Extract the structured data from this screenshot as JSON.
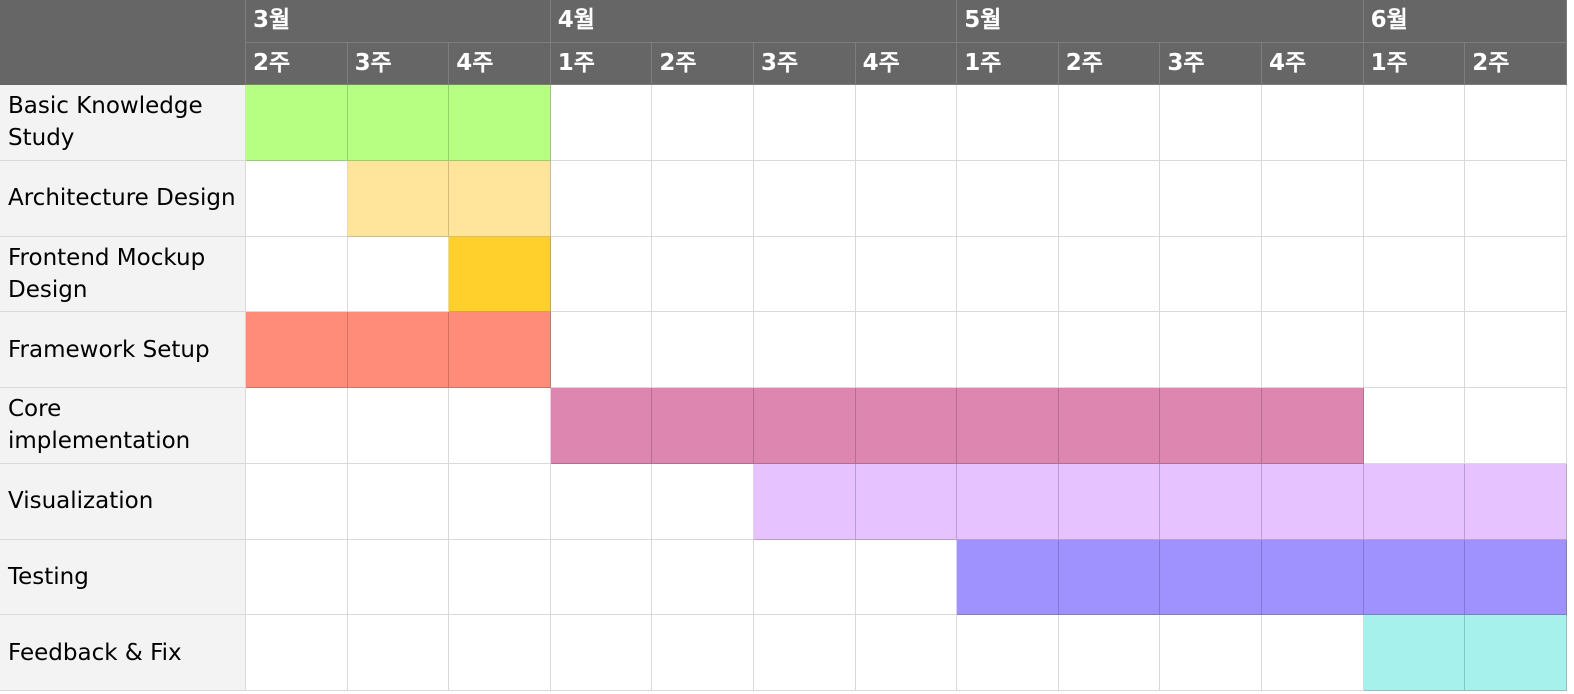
{
  "months": [
    {
      "label": "3월",
      "start": 0,
      "span": 3
    },
    {
      "label": "4월",
      "start": 3,
      "span": 4
    },
    {
      "label": "5월",
      "start": 7,
      "span": 4
    },
    {
      "label": "6월",
      "start": 11,
      "span": 2
    }
  ],
  "weeks": [
    "2주",
    "3주",
    "4주",
    "1주",
    "2주",
    "3주",
    "4주",
    "1주",
    "2주",
    "3주",
    "4주",
    "1주",
    "2주"
  ],
  "tasks": [
    {
      "label": "Basic Knowledge Study",
      "start": 0,
      "end": 2,
      "color": "#b6ff82"
    },
    {
      "label": "Architecture Design",
      "start": 1,
      "end": 2,
      "color": "#ffe59b"
    },
    {
      "label": "Frontend Mockup Design",
      "start": 2,
      "end": 2,
      "color": "#ffd02b"
    },
    {
      "label": "Framework Setup",
      "start": 0,
      "end": 2,
      "color": "#ff8c79"
    },
    {
      "label": "Core implementation",
      "start": 3,
      "end": 10,
      "color": "#dd87b0"
    },
    {
      "label": "Visualization",
      "start": 5,
      "end": 12,
      "color": "#e6c3ff"
    },
    {
      "label": "Testing",
      "start": 7,
      "end": 12,
      "color": "#9f92ff"
    },
    {
      "label": "Feedback & Fix",
      "start": 11,
      "end": 12,
      "color": "#a7f1ec"
    }
  ]
}
